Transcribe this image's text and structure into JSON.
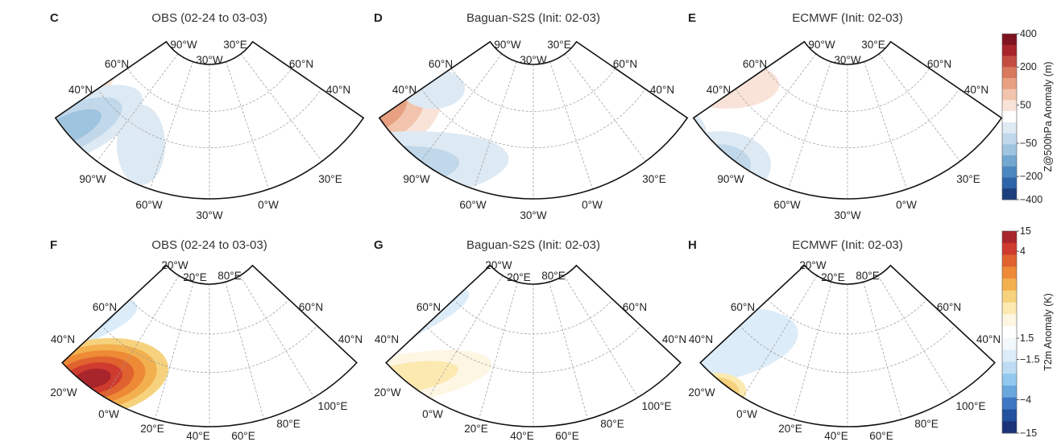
{
  "panels": [
    {
      "letter": "C",
      "title": "OBS (02-24 to 03-03)",
      "row": "z500",
      "labels": [
        "90°W",
        "30°E",
        "30°W",
        "60°N",
        "40°N",
        "60°N",
        "40°N",
        "90°W",
        "30°E",
        "60°W",
        "30°W",
        "0°W"
      ]
    },
    {
      "letter": "D",
      "title": "Baguan-S2S (Init: 02-03)",
      "row": "z500",
      "labels": [
        "90°W",
        "30°E",
        "30°W",
        "60°N",
        "40°N",
        "60°N",
        "40°N",
        "90°W",
        "30°E",
        "60°W",
        "30°W",
        "0°W"
      ]
    },
    {
      "letter": "E",
      "title": "ECMWF (Init: 02-03)",
      "row": "z500",
      "labels": [
        "90°W",
        "30°E",
        "30°W",
        "60°N",
        "40°N",
        "60°N",
        "40°N",
        "90°W",
        "30°E",
        "60°W",
        "30°W",
        "0°W"
      ]
    },
    {
      "letter": "F",
      "title": "OBS (02-24 to 03-03)",
      "row": "t2m",
      "labels": [
        "20°W",
        "20°E",
        "80°E",
        "60°N",
        "40°N",
        "20°W",
        "0°W",
        "20°E",
        "40°E",
        "60°E",
        "80°E",
        "100°E",
        "60°N",
        "40°N"
      ]
    },
    {
      "letter": "G",
      "title": "Baguan-S2S (Init: 02-03)",
      "row": "t2m",
      "labels": [
        "20°W",
        "20°E",
        "80°E",
        "60°N",
        "40°N",
        "20°W",
        "0°W",
        "20°E",
        "40°E",
        "60°E",
        "80°E",
        "100°E",
        "60°N",
        "40°N"
      ]
    },
    {
      "letter": "H",
      "title": "ECMWF (Init: 02-03)",
      "row": "t2m",
      "labels": [
        "20°W",
        "20°E",
        "80°E",
        "60°N",
        "40°N",
        "20°W",
        "0°W",
        "20°E",
        "40°E",
        "60°E",
        "80°E",
        "100°E",
        "60°N",
        "40°N"
      ]
    }
  ],
  "colorbars": {
    "z500": {
      "title": "Z@500hPa Anomaly (m)",
      "ticks": [
        "400",
        "200",
        "50",
        "−50",
        "−200",
        "−400"
      ],
      "colors": [
        "#7f1320",
        "#a8252c",
        "#c44d41",
        "#d8785c",
        "#e8a083",
        "#f2c4ad",
        "#f9e3d8",
        "#ffffff",
        "#dde9f3",
        "#c0d8ea",
        "#9fc4df",
        "#72a8d0",
        "#4d87bf",
        "#2e64a8",
        "#1d3f7e"
      ]
    },
    "t2m": {
      "title": "T2m Anomaly (K)",
      "ticks": [
        "15",
        "4",
        "1.5",
        "−1.5",
        "−4",
        "−15"
      ],
      "colors": [
        "#a8252c",
        "#cf3b2f",
        "#e0622f",
        "#ee8a36",
        "#f3b04f",
        "#f6d27e",
        "#fbe9b0",
        "#fdf6e3",
        "#ffffff",
        "#f3f8fc",
        "#dcecf8",
        "#bddcf3",
        "#92c8ee",
        "#6aa7dc",
        "#3f78c2",
        "#24519e",
        "#1b3478"
      ]
    }
  }
}
